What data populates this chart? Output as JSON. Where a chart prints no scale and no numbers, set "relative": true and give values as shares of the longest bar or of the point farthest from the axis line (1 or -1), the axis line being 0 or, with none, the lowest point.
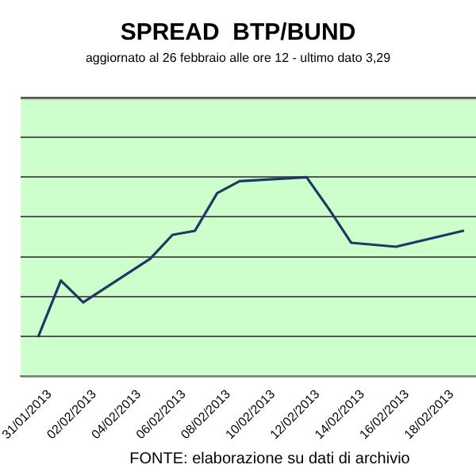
{
  "chart_data": {
    "type": "line",
    "title": "SPREAD  BTP/BUND",
    "subtitle": "aggiornato al 26 febbraio alle ore 12 - ultimo dato 3,29",
    "annotations": [
      "FONTE: elaborazione su dati di archivio"
    ],
    "x": [
      "2013-01-30T12:00",
      "2013-01-31T12:00",
      "2013-02-01T12:00",
      "2013-02-04T12:00",
      "2013-02-05T12:00",
      "2013-02-06T12:00",
      "2013-02-07T12:00",
      "2013-02-08T12:00",
      "2013-02-11T12:00",
      "2013-02-12T12:00",
      "2013-02-13T12:00",
      "2013-02-14T12:00",
      "2013-02-15T12:00",
      "2013-02-18T12:00"
    ],
    "series": [
      {
        "color": "#1f3864",
        "values": [
          0.2,
          0.48,
          0.37,
          0.59,
          0.71,
          0.73,
          0.92,
          0.98,
          1,
          0.84,
          0.67,
          0.66,
          0.65,
          0.73
        ]
      }
    ],
    "relative": true,
    "xlim": [
      "2013-01-29T17:00",
      "2013-02-19T02:00"
    ],
    "xticks": [
      {
        "value": "2013-01-31",
        "label": "31/01/2013"
      },
      {
        "value": "2013-02-02",
        "label": "02/02/2013"
      },
      {
        "value": "2013-02-04",
        "label": "04/02/2013"
      },
      {
        "value": "2013-02-06",
        "label": "06/02/2013"
      },
      {
        "value": "2013-02-08",
        "label": "08/02/2013"
      },
      {
        "value": "2013-02-10",
        "label": "10/02/2013"
      },
      {
        "value": "2013-02-12",
        "label": "12/02/2013"
      },
      {
        "value": "2013-02-14",
        "label": "14/02/2013"
      },
      {
        "value": "2013-02-16",
        "label": "16/02/2013"
      },
      {
        "value": "2013-02-18",
        "label": "18/02/2013"
      }
    ],
    "grid": "y",
    "legend": false,
    "marker": "none",
    "line_style": "solid"
  }
}
